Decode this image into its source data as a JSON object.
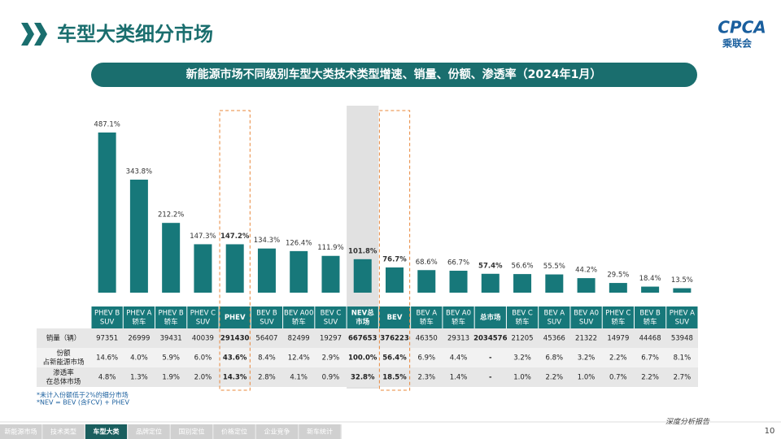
{
  "header": {
    "title": "车型大类细分市场",
    "logo": "CPCA",
    "logo_sub": "乘联会"
  },
  "chart_data": {
    "type": "bar",
    "title": "新能源市场不同级别车型大类技术类型增速、销量、份额、渗透率（2024年1月）",
    "categories": [
      [
        "PHEV B",
        "SUV"
      ],
      [
        "PHEV A",
        "轿车"
      ],
      [
        "PHEV B",
        "轿车"
      ],
      [
        "PHEV C",
        "SUV"
      ],
      [
        "PHEV"
      ],
      [
        "BEV B",
        "SUV"
      ],
      [
        "BEV A00",
        "轿车"
      ],
      [
        "BEV C",
        "SUV"
      ],
      [
        "NEV总",
        "市场"
      ],
      [
        "BEV"
      ],
      [
        "BEV A",
        "轿车"
      ],
      [
        "BEV A0",
        "轿车"
      ],
      [
        "总市场"
      ],
      [
        "BEV C",
        "轿车"
      ],
      [
        "BEV A",
        "SUV"
      ],
      [
        "BEV A0",
        "SUV"
      ],
      [
        "PHEV C",
        "轿车"
      ],
      [
        "BEV B",
        "轿车"
      ],
      [
        "PHEV A",
        "SUV"
      ]
    ],
    "values": [
      487.1,
      343.8,
      212.2,
      147.3,
      147.2,
      134.3,
      126.4,
      111.9,
      101.8,
      76.7,
      68.6,
      66.7,
      57.4,
      56.6,
      55.5,
      44.2,
      29.5,
      18.4,
      13.5
    ],
    "value_labels": [
      "487.1%",
      "343.8%",
      "212.2%",
      "147.3%",
      "147.2%",
      "134.3%",
      "126.4%",
      "111.9%",
      "101.8%",
      "76.7%",
      "68.6%",
      "66.7%",
      "57.4%",
      "56.6%",
      "55.5%",
      "44.2%",
      "29.5%",
      "18.4%",
      "13.5%"
    ],
    "color": "#17787a"
  },
  "table": {
    "row_labels": [
      [
        "销量（辆）"
      ],
      [
        "份额",
        "占新能源市场"
      ],
      [
        "渗透率",
        "在总体市场"
      ]
    ],
    "rows": [
      [
        "97351",
        "26999",
        "39431",
        "40039",
        "291430",
        "56407",
        "82499",
        "19297",
        "667653",
        "376223",
        "46350",
        "29313",
        "2034576",
        "21205",
        "45366",
        "21322",
        "14979",
        "44468",
        "53948"
      ],
      [
        "14.6%",
        "4.0%",
        "5.9%",
        "6.0%",
        "43.6%",
        "8.4%",
        "12.4%",
        "2.9%",
        "100.0%",
        "56.4%",
        "6.9%",
        "4.4%",
        "-",
        "3.2%",
        "6.8%",
        "3.2%",
        "2.2%",
        "6.7%",
        "8.1%"
      ],
      [
        "4.8%",
        "1.3%",
        "1.9%",
        "2.0%",
        "14.3%",
        "2.8%",
        "4.1%",
        "0.9%",
        "32.8%",
        "18.5%",
        "2.3%",
        "1.4%",
        "-",
        "1.0%",
        "2.2%",
        "1.0%",
        "0.7%",
        "2.2%",
        "2.7%"
      ]
    ]
  },
  "notes": [
    "*未计入份额低于2%的细分市场",
    "*NEV = BEV (含FCV) + PHEV"
  ],
  "footer": {
    "tagline": "深度分析报告",
    "page": "10",
    "nav": [
      "新能源市场",
      "技术类型",
      "车型大类",
      "品牌定位",
      "国别定位",
      "价格定位",
      "企业竞争",
      "新车统计"
    ]
  }
}
